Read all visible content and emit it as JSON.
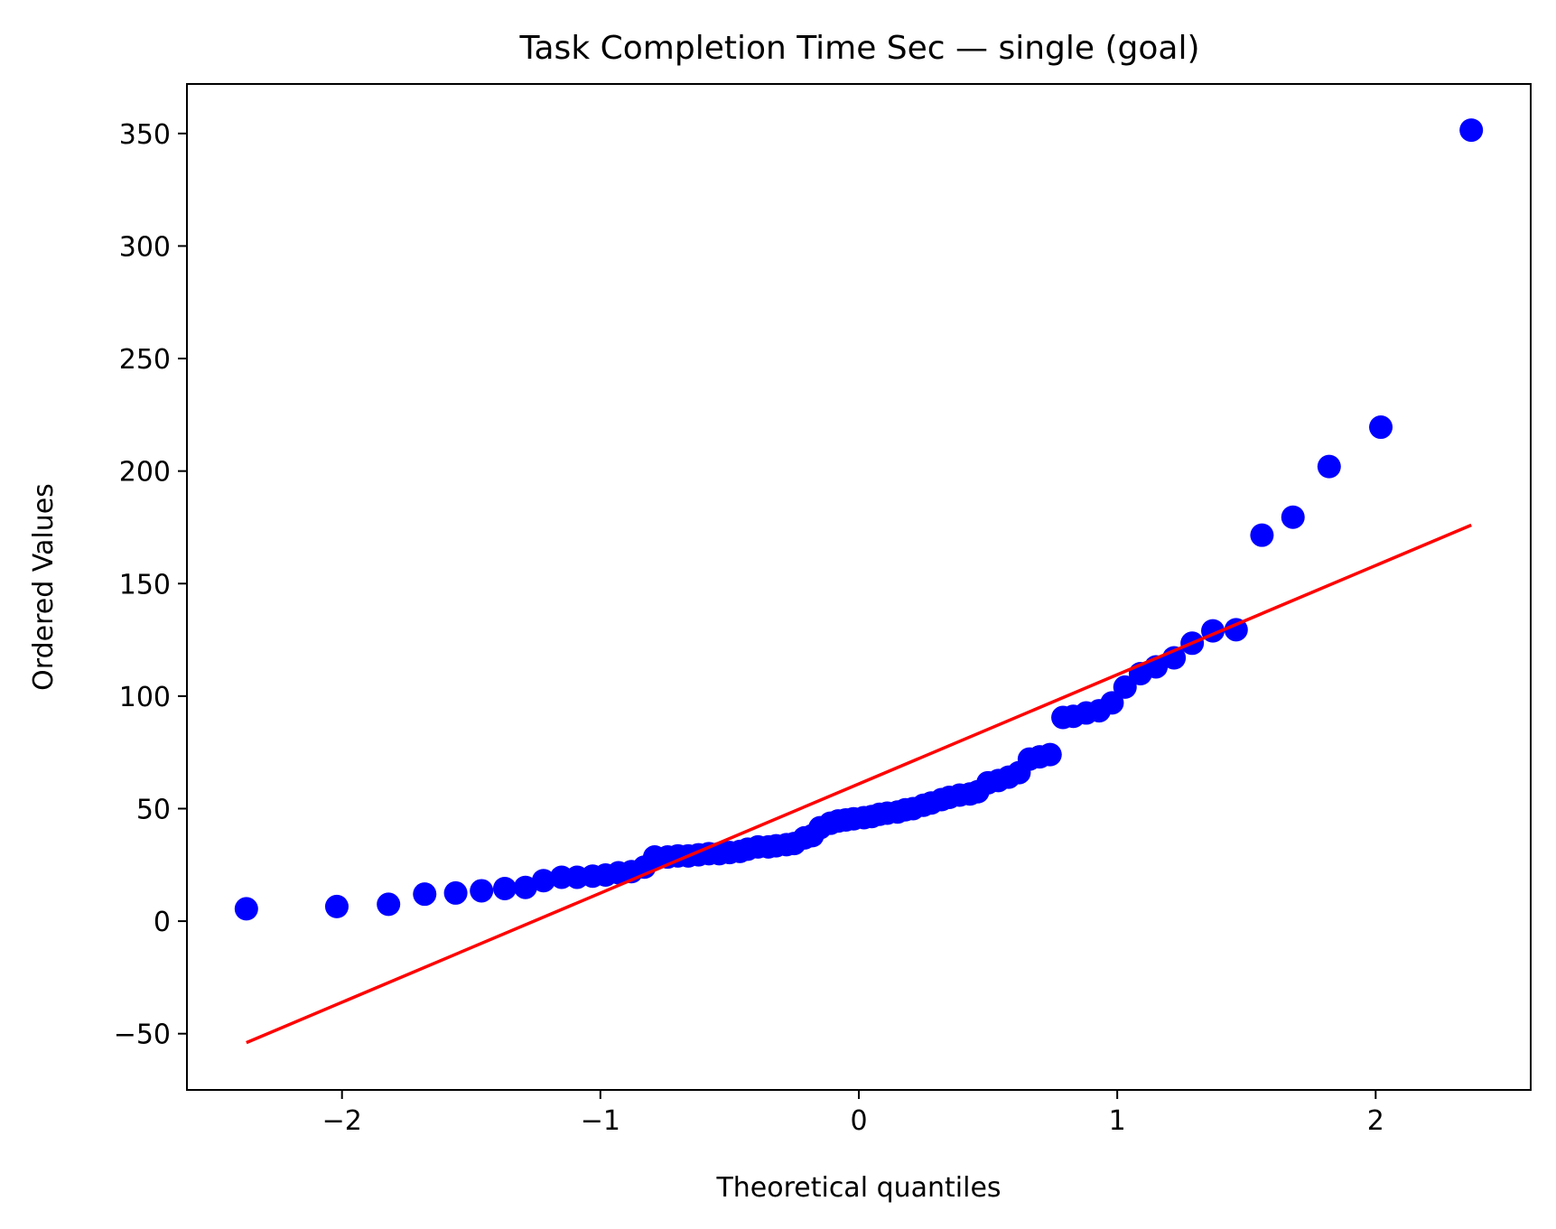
{
  "chart_data": {
    "type": "scatter",
    "title": "Task Completion Time Sec — single (goal)",
    "xlabel": "Theoretical quantiles",
    "ylabel": "Ordered Values",
    "xlim": [
      -2.6,
      2.6
    ],
    "ylim": [
      -75,
      372
    ],
    "xticks": [
      -2,
      -1,
      0,
      1,
      2
    ],
    "xtick_labels": [
      "−2",
      "−1",
      "0",
      "1",
      "2"
    ],
    "yticks": [
      -50,
      0,
      50,
      100,
      150,
      200,
      250,
      300,
      350
    ],
    "ytick_labels": [
      "−50",
      "0",
      "50",
      "100",
      "150",
      "200",
      "250",
      "300",
      "350"
    ],
    "grid": false,
    "point_color": "#0000ff",
    "line_color": "#ff0000",
    "fit_line": {
      "x": [
        -2.37,
        2.37
      ],
      "y": [
        -54,
        176
      ]
    },
    "points": [
      [
        -2.37,
        5.5
      ],
      [
        -2.02,
        6.5
      ],
      [
        -1.82,
        7.5
      ],
      [
        -1.68,
        12
      ],
      [
        -1.56,
        12.5
      ],
      [
        -1.46,
        13.5
      ],
      [
        -1.37,
        14.5
      ],
      [
        -1.29,
        15
      ],
      [
        -1.22,
        18
      ],
      [
        -1.15,
        19.5
      ],
      [
        -1.09,
        19.5
      ],
      [
        -1.03,
        20
      ],
      [
        -0.98,
        20.5
      ],
      [
        -0.93,
        21.5
      ],
      [
        -0.88,
        22
      ],
      [
        -0.83,
        24
      ],
      [
        -0.79,
        28.5
      ],
      [
        -0.74,
        28.5
      ],
      [
        -0.7,
        29
      ],
      [
        -0.66,
        29
      ],
      [
        -0.62,
        29.5
      ],
      [
        -0.58,
        30
      ],
      [
        -0.54,
        30
      ],
      [
        -0.5,
        30.5
      ],
      [
        -0.46,
        31
      ],
      [
        -0.43,
        32
      ],
      [
        -0.39,
        33
      ],
      [
        -0.35,
        33
      ],
      [
        -0.32,
        33.5
      ],
      [
        -0.28,
        34
      ],
      [
        -0.25,
        34.5
      ],
      [
        -0.21,
        37
      ],
      [
        -0.18,
        38
      ],
      [
        -0.15,
        41.5
      ],
      [
        -0.11,
        43.5
      ],
      [
        -0.08,
        44.5
      ],
      [
        -0.05,
        45
      ],
      [
        -0.02,
        45.5
      ],
      [
        0.02,
        46
      ],
      [
        0.05,
        46.5
      ],
      [
        0.08,
        47.5
      ],
      [
        0.11,
        48
      ],
      [
        0.15,
        48.5
      ],
      [
        0.18,
        49.5
      ],
      [
        0.21,
        50
      ],
      [
        0.25,
        51.5
      ],
      [
        0.28,
        52.5
      ],
      [
        0.32,
        54
      ],
      [
        0.35,
        55
      ],
      [
        0.39,
        56
      ],
      [
        0.43,
        56.5
      ],
      [
        0.46,
        57.5
      ],
      [
        0.5,
        61.5
      ],
      [
        0.54,
        62.5
      ],
      [
        0.58,
        64
      ],
      [
        0.62,
        66
      ],
      [
        0.66,
        72
      ],
      [
        0.7,
        73
      ],
      [
        0.74,
        74
      ],
      [
        0.79,
        90.5
      ],
      [
        0.83,
        91
      ],
      [
        0.88,
        92.5
      ],
      [
        0.93,
        93.5
      ],
      [
        0.98,
        97
      ],
      [
        1.03,
        104
      ],
      [
        1.09,
        110
      ],
      [
        1.15,
        113
      ],
      [
        1.22,
        117
      ],
      [
        1.29,
        123.5
      ],
      [
        1.37,
        129
      ],
      [
        1.46,
        129.5
      ],
      [
        1.56,
        171.5
      ],
      [
        1.68,
        179.5
      ],
      [
        1.82,
        202
      ],
      [
        2.02,
        219.5
      ],
      [
        2.37,
        351.5
      ]
    ]
  }
}
